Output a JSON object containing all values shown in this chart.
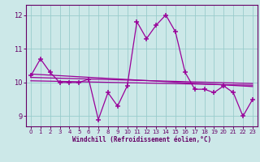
{
  "x": [
    0,
    1,
    2,
    3,
    4,
    5,
    6,
    7,
    8,
    9,
    10,
    11,
    12,
    13,
    14,
    15,
    16,
    17,
    18,
    19,
    20,
    21,
    22,
    23
  ],
  "y_main": [
    10.2,
    10.7,
    10.3,
    10.0,
    10.0,
    10.0,
    10.1,
    8.9,
    9.7,
    9.3,
    9.9,
    11.8,
    11.3,
    11.7,
    12.0,
    11.5,
    10.3,
    9.8,
    9.8,
    9.7,
    9.9,
    9.7,
    9.0,
    9.5
  ],
  "trend1": [
    10.25,
    9.88
  ],
  "trend2": [
    10.05,
    9.92
  ],
  "trend3": [
    10.15,
    9.97
  ],
  "ylim": [
    8.7,
    12.3
  ],
  "xlim": [
    -0.5,
    23.5
  ],
  "yticks": [
    9,
    10,
    11,
    12
  ],
  "xticks": [
    0,
    1,
    2,
    3,
    4,
    5,
    6,
    7,
    8,
    9,
    10,
    11,
    12,
    13,
    14,
    15,
    16,
    17,
    18,
    19,
    20,
    21,
    22,
    23
  ],
  "xlabel": "Windchill (Refroidissement éolien,°C)",
  "line_color": "#990099",
  "bg_color": "#cce8e8",
  "grid_color": "#99cccc",
  "label_color": "#660066",
  "fig_bg": "#cce8e8"
}
